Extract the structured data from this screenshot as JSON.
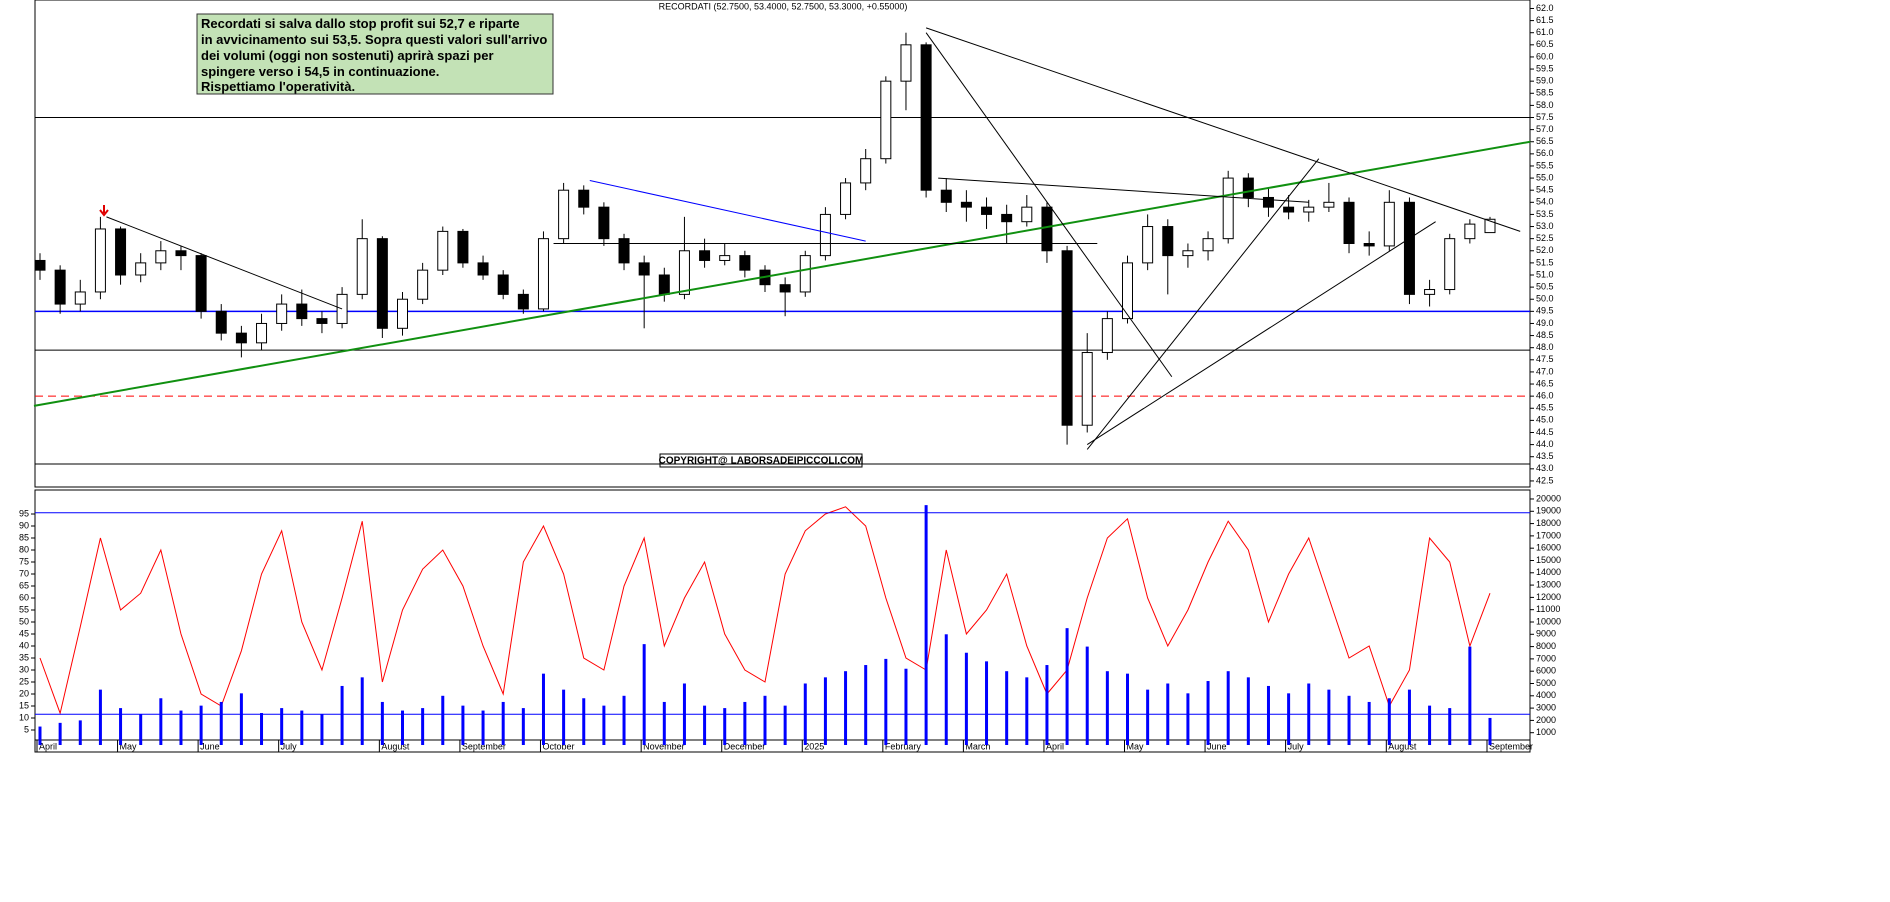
{
  "chart_data": [
    {
      "type": "candlestick",
      "title": "RECORDATI (52.7500, 53.4000, 52.7500, 53.3000, +0.55000)",
      "annotation": [
        "Recordati si salva dallo stop profit sui 52,7 e riparte",
        "in avvicinamento sui 53,5. Sopra questi valori sull'arrivo",
        "dei volumi (oggi non sostenuti) aprirà spazi per",
        "spingere verso i 54,5 in continuazione.",
        "Rispettiamo l'operatività."
      ],
      "copyright": "COPYRIGHT@ LABORSADEIPICCOLI.COM",
      "categories": [
        "April",
        null,
        null,
        null,
        "May",
        null,
        null,
        null,
        "June",
        null,
        null,
        null,
        "July",
        null,
        null,
        null,
        null,
        "August",
        null,
        null,
        null,
        "September",
        null,
        null,
        null,
        "October",
        null,
        null,
        null,
        null,
        "November",
        null,
        null,
        null,
        "December",
        null,
        null,
        null,
        "2025",
        null,
        null,
        null,
        "February",
        null,
        null,
        null,
        "March",
        null,
        null,
        null,
        "April",
        null,
        null,
        null,
        "May",
        null,
        null,
        null,
        "June",
        null,
        null,
        null,
        "July",
        null,
        null,
        null,
        null,
        "August",
        null,
        null,
        null,
        null,
        "September"
      ],
      "ohlc": [
        [
          51.6,
          51.9,
          50.8,
          51.2
        ],
        [
          51.2,
          51.4,
          49.4,
          49.8
        ],
        [
          49.8,
          50.8,
          49.5,
          50.3
        ],
        [
          50.3,
          53.4,
          50.0,
          52.9
        ],
        [
          52.9,
          53.0,
          50.6,
          51.0
        ],
        [
          51.0,
          51.9,
          50.7,
          51.5
        ],
        [
          51.5,
          52.4,
          51.2,
          52.0
        ],
        [
          52.0,
          52.2,
          51.2,
          51.8
        ],
        [
          51.8,
          51.9,
          49.2,
          49.5
        ],
        [
          49.5,
          49.8,
          48.3,
          48.6
        ],
        [
          48.6,
          48.9,
          47.6,
          48.2
        ],
        [
          48.2,
          49.4,
          47.9,
          49.0
        ],
        [
          49.0,
          50.2,
          48.7,
          49.8
        ],
        [
          49.8,
          50.4,
          48.9,
          49.2
        ],
        [
          49.2,
          49.5,
          48.6,
          49.0
        ],
        [
          49.0,
          50.5,
          48.8,
          50.2
        ],
        [
          50.2,
          53.3,
          50.0,
          52.5
        ],
        [
          52.5,
          52.6,
          48.4,
          48.8
        ],
        [
          48.8,
          50.3,
          48.5,
          50.0
        ],
        [
          50.0,
          51.5,
          49.8,
          51.2
        ],
        [
          51.2,
          53.0,
          51.0,
          52.8
        ],
        [
          52.8,
          52.9,
          51.3,
          51.5
        ],
        [
          51.5,
          51.8,
          50.8,
          51.0
        ],
        [
          51.0,
          51.2,
          50.0,
          50.2
        ],
        [
          50.2,
          50.4,
          49.4,
          49.6
        ],
        [
          49.6,
          52.8,
          49.5,
          52.5
        ],
        [
          52.5,
          54.8,
          52.3,
          54.5
        ],
        [
          54.5,
          54.7,
          53.5,
          53.8
        ],
        [
          53.8,
          54.0,
          52.2,
          52.5
        ],
        [
          52.5,
          52.7,
          51.2,
          51.5
        ],
        [
          51.5,
          51.8,
          48.8,
          51.0
        ],
        [
          51.0,
          51.3,
          49.9,
          50.2
        ],
        [
          50.2,
          53.4,
          50.0,
          52.0
        ],
        [
          52.0,
          52.5,
          51.3,
          51.6
        ],
        [
          51.6,
          52.3,
          51.4,
          51.8
        ],
        [
          51.8,
          52.0,
          50.9,
          51.2
        ],
        [
          51.2,
          51.4,
          50.3,
          50.6
        ],
        [
          50.6,
          50.9,
          49.3,
          50.3
        ],
        [
          50.3,
          52.0,
          50.1,
          51.8
        ],
        [
          51.8,
          53.8,
          51.6,
          53.5
        ],
        [
          53.5,
          55.0,
          53.3,
          54.8
        ],
        [
          54.8,
          56.2,
          54.5,
          55.8
        ],
        [
          55.8,
          59.2,
          55.6,
          59.0
        ],
        [
          59.0,
          61.0,
          57.8,
          60.5
        ],
        [
          60.5,
          60.6,
          54.2,
          54.5
        ],
        [
          54.5,
          55.0,
          53.6,
          54.0
        ],
        [
          54.0,
          54.5,
          53.2,
          53.8
        ],
        [
          53.8,
          54.2,
          52.9,
          53.5
        ],
        [
          53.5,
          53.9,
          52.3,
          53.2
        ],
        [
          53.2,
          54.3,
          53.0,
          53.8
        ],
        [
          53.8,
          54.0,
          51.5,
          52.0
        ],
        [
          52.0,
          52.2,
          44.0,
          44.8
        ],
        [
          44.8,
          48.6,
          44.5,
          47.8
        ],
        [
          47.8,
          49.5,
          47.5,
          49.2
        ],
        [
          49.2,
          51.8,
          49.0,
          51.5
        ],
        [
          51.5,
          53.5,
          51.2,
          53.0
        ],
        [
          53.0,
          53.3,
          50.2,
          51.8
        ],
        [
          51.8,
          52.3,
          51.3,
          52.0
        ],
        [
          52.0,
          52.8,
          51.6,
          52.5
        ],
        [
          52.5,
          55.3,
          52.3,
          55.0
        ],
        [
          55.0,
          55.2,
          53.8,
          54.2
        ],
        [
          54.2,
          54.6,
          53.4,
          53.8
        ],
        [
          53.8,
          54.3,
          53.3,
          53.6
        ],
        [
          53.6,
          54.1,
          53.2,
          53.8
        ],
        [
          53.8,
          54.8,
          53.6,
          54.0
        ],
        [
          54.0,
          54.2,
          51.9,
          52.3
        ],
        [
          52.3,
          52.8,
          51.8,
          52.2
        ],
        [
          52.2,
          54.5,
          52.0,
          54.0
        ],
        [
          54.0,
          54.2,
          49.8,
          50.2
        ],
        [
          50.2,
          50.8,
          49.7,
          50.4
        ],
        [
          50.4,
          52.7,
          50.2,
          52.5
        ],
        [
          52.5,
          53.3,
          52.3,
          53.1
        ],
        [
          52.75,
          53.4,
          52.75,
          53.3
        ]
      ],
      "ylim": [
        42.25,
        62.35
      ],
      "yticks": [
        {
          "value": 62,
          "label": "62.0"
        },
        {
          "value": 61.5,
          "label": "61.5"
        },
        {
          "value": 61,
          "label": "61.0"
        },
        {
          "value": 60.5,
          "label": "60.5"
        },
        {
          "value": 60,
          "label": "60.0"
        },
        {
          "value": 59.5,
          "label": "59.5"
        },
        {
          "value": 59,
          "label": "59.0"
        },
        {
          "value": 58.5,
          "label": "58.5"
        },
        {
          "value": 58,
          "label": "58.0"
        },
        {
          "value": 57.5,
          "label": "57.5"
        },
        {
          "value": 57,
          "label": "57.0"
        },
        {
          "value": 56.5,
          "label": "56.5"
        },
        {
          "value": 56,
          "label": "56.0"
        },
        {
          "value": 55.5,
          "label": "55.5"
        },
        {
          "value": 55,
          "label": "55.0"
        },
        {
          "value": 54.5,
          "label": "54.5"
        },
        {
          "value": 54,
          "label": "54.0"
        },
        {
          "value": 53.5,
          "label": "53.5"
        },
        {
          "value": 53,
          "label": "53.0"
        },
        {
          "value": 52.5,
          "label": "52.5"
        },
        {
          "value": 52,
          "label": "52.0"
        },
        {
          "value": 51.5,
          "label": "51.5"
        },
        {
          "value": 51,
          "label": "51.0"
        },
        {
          "value": 50.5,
          "label": "50.5"
        },
        {
          "value": 50,
          "label": "50.0"
        },
        {
          "value": 49.5,
          "label": "49.5"
        },
        {
          "value": 49,
          "label": "49.0"
        },
        {
          "value": 48.5,
          "label": "48.5"
        },
        {
          "value": 48,
          "label": "48.0"
        },
        {
          "value": 47.5,
          "label": "47.5"
        },
        {
          "value": 47,
          "label": "47.0"
        },
        {
          "value": 46.5,
          "label": "46.5"
        },
        {
          "value": 46,
          "label": "46.0"
        },
        {
          "value": 45.5,
          "label": "45.5"
        },
        {
          "value": 45,
          "label": "45.0"
        },
        {
          "value": 44.5,
          "label": "44.5"
        },
        {
          "value": 44,
          "label": "44.0"
        },
        {
          "value": 43.5,
          "label": "43.5"
        },
        {
          "value": 43,
          "label": "43.0"
        },
        {
          "value": 42.5,
          "label": "42.5"
        }
      ],
      "hlines": [
        {
          "value": 57.5,
          "color": "#000000",
          "dashed": false
        },
        {
          "value": 49.5,
          "color": "#0000ff",
          "dashed": false
        },
        {
          "value": 47.9,
          "color": "#000000",
          "dashed": false
        },
        {
          "value": 46.0,
          "color": "#ff0000",
          "dashed": true
        },
        {
          "value": 43.2,
          "color": "#000000",
          "dashed": false
        }
      ],
      "trendlines": [
        {
          "from": [
            -0.3,
            45.6
          ],
          "to": [
            74,
            56.5
          ],
          "color": "#109010"
        },
        {
          "from": [
            3.3,
            53.4
          ],
          "to": [
            15,
            49.6
          ],
          "color": "#000000"
        },
        {
          "from": [
            27.3,
            54.9
          ],
          "to": [
            41,
            52.4
          ],
          "color": "#0000ff"
        },
        {
          "from": [
            25.5,
            52.3
          ],
          "to": [
            52.5,
            52.3
          ],
          "color": "#000000"
        },
        {
          "from": [
            44,
            61.2
          ],
          "to": [
            73.5,
            52.8
          ],
          "color": "#000000"
        },
        {
          "from": [
            44,
            61.0
          ],
          "to": [
            56.2,
            46.8
          ],
          "color": "#000000"
        },
        {
          "from": [
            52,
            43.8
          ],
          "to": [
            63.5,
            55.8
          ],
          "color": "#000000"
        },
        {
          "from": [
            52,
            44.0
          ],
          "to": [
            69.3,
            53.2
          ],
          "color": "#000000"
        },
        {
          "from": [
            44.6,
            55.0
          ],
          "to": [
            63,
            54.0
          ],
          "color": "#000000"
        }
      ]
    },
    {
      "type": "indicator",
      "ylim": [
        -1.25,
        105
      ],
      "yticks": [
        5,
        10,
        15,
        20,
        25,
        30,
        35,
        40,
        45,
        50,
        55,
        60,
        65,
        70,
        75,
        80,
        85,
        90,
        95
      ],
      "y2lim": [
        0,
        20730
      ],
      "y2ticks": [
        1000,
        2000,
        3000,
        4000,
        5000,
        6000,
        7000,
        8000,
        9000,
        10000,
        11000,
        12000,
        13000,
        14000,
        15000,
        16000,
        17000,
        18000,
        19000,
        20000
      ],
      "hlines": [
        {
          "value": 95.5,
          "color": "#0000ff"
        },
        {
          "value": 2500,
          "color": "#0000ff",
          "axis": "y2"
        }
      ],
      "series": [
        {
          "type": "line",
          "color": "#ff0000",
          "values": [
            35,
            12,
            48,
            85,
            55,
            62,
            80,
            45,
            20,
            15,
            38,
            70,
            88,
            50,
            30,
            60,
            92,
            25,
            55,
            72,
            80,
            65,
            40,
            20,
            75,
            90,
            70,
            35,
            30,
            65,
            85,
            40,
            60,
            75,
            45,
            30,
            25,
            70,
            88,
            95,
            98,
            90,
            60,
            35,
            30,
            80,
            45,
            55,
            70,
            40,
            20,
            30,
            60,
            85,
            93,
            60,
            40,
            55,
            75,
            92,
            80,
            50,
            70,
            85,
            60,
            35,
            40,
            15,
            30,
            85,
            75,
            40,
            62
          ]
        },
        {
          "type": "bar",
          "axis": "y2",
          "color": "#0000ff",
          "values": [
            1500,
            1800,
            2000,
            4500,
            3000,
            2500,
            3800,
            2800,
            3200,
            3500,
            4200,
            2600,
            3000,
            2800,
            2500,
            4800,
            5500,
            3500,
            2800,
            3000,
            4000,
            3200,
            2800,
            3500,
            3000,
            5800,
            4500,
            3800,
            3200,
            4000,
            8200,
            3500,
            5000,
            3200,
            3000,
            3500,
            4000,
            3200,
            5000,
            5500,
            6000,
            6500,
            7000,
            6200,
            19500,
            9000,
            7500,
            6800,
            6000,
            5500,
            6500,
            9500,
            8000,
            6000,
            5800,
            4500,
            5000,
            4200,
            5200,
            6000,
            5500,
            4800,
            4200,
            5000,
            4500,
            4000,
            3500,
            3800,
            4500,
            3200,
            3000,
            8000,
            2200
          ]
        }
      ]
    }
  ]
}
